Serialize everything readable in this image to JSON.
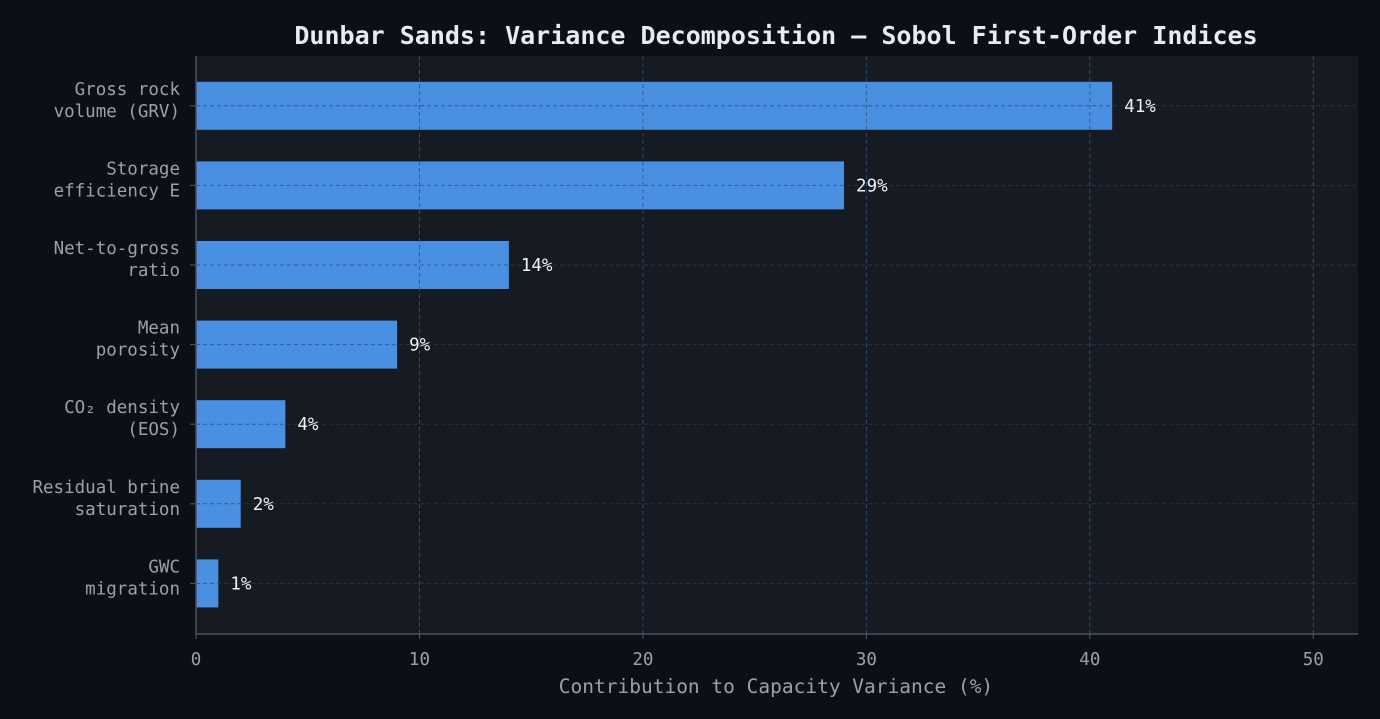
{
  "chart_data": {
    "type": "bar",
    "orientation": "horizontal",
    "title": "Dunbar Sands: Variance Decomposition — Sobol First-Order Indices",
    "xlabel": "Contribution to Capacity Variance (%)",
    "ylabel": "",
    "categories": [
      [
        "Gross rock",
        "volume (GRV)"
      ],
      [
        "Storage",
        "efficiency E"
      ],
      [
        "Net-to-gross",
        "ratio"
      ],
      [
        "Mean",
        "porosity"
      ],
      [
        "CO₂ density",
        "(EOS)"
      ],
      [
        "Residual brine",
        "saturation"
      ],
      [
        "GWC",
        "migration"
      ]
    ],
    "values": [
      41,
      29,
      14,
      9,
      4,
      2,
      1
    ],
    "value_labels": [
      "41%",
      "29%",
      "14%",
      "9%",
      "4%",
      "2%",
      "1%"
    ],
    "xlim": [
      0,
      52
    ],
    "xticks": [
      0,
      10,
      20,
      30,
      40,
      50
    ],
    "xtick_labels": [
      "0",
      "10",
      "20",
      "30",
      "40",
      "50"
    ],
    "grid": true,
    "legend": "none"
  },
  "colors": {
    "background": "#0c0f15",
    "plot_background": "#161a22",
    "bar": "#4a90e2",
    "grid": "#2c323d",
    "axis": "#4a505c",
    "text": "#9aa1ad",
    "title": "#e8ecf2",
    "data_label": "#eef1f5"
  }
}
